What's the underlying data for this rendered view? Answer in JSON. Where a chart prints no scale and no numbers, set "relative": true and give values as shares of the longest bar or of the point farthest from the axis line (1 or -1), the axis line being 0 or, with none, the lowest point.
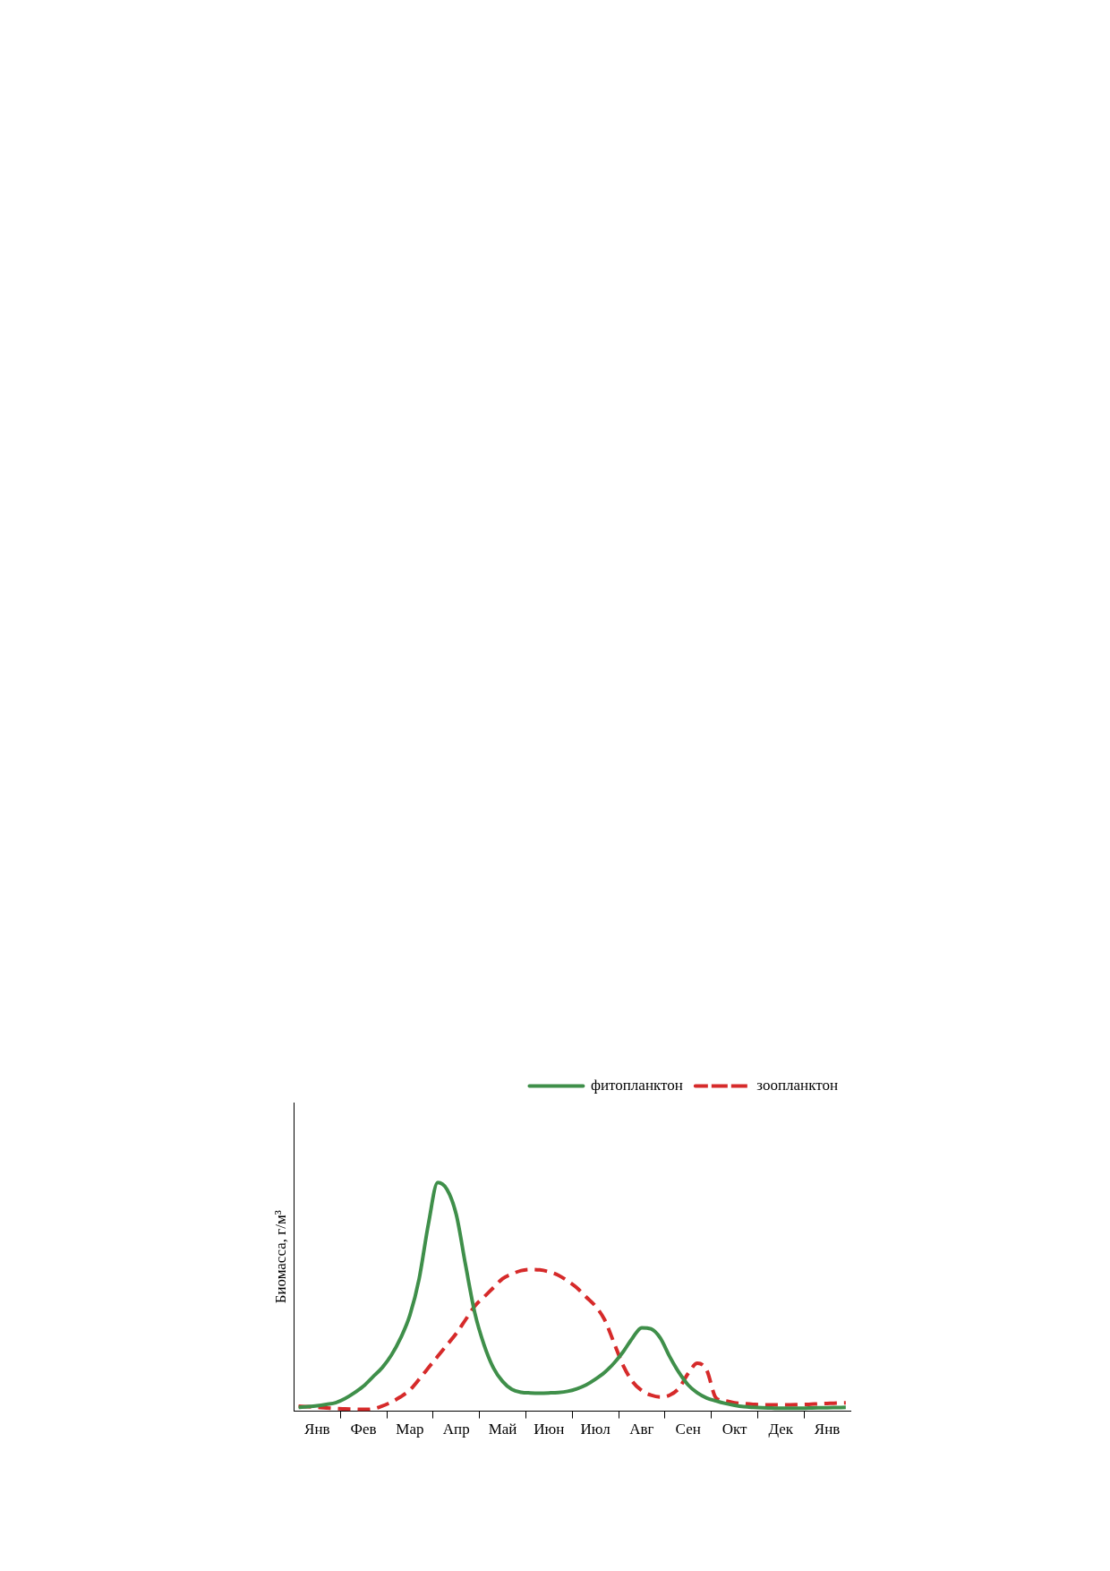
{
  "chart_data": {
    "type": "line",
    "ylabel": "Биомасса, г/м³",
    "relative": true,
    "legend": "top right",
    "marker": "none",
    "grid": false,
    "categories": [
      null,
      null,
      "Янв",
      null,
      null,
      null,
      null,
      "Фев",
      null,
      null,
      null,
      null,
      "Мар",
      null,
      null,
      null,
      null,
      "Апр",
      null,
      null,
      null,
      null,
      "Май",
      null,
      null,
      null,
      null,
      "Июн",
      null,
      null,
      null,
      null,
      "Июл",
      null,
      null,
      null,
      null,
      "Авг",
      null,
      null,
      null,
      null,
      "Сен",
      null,
      null,
      null,
      null,
      "Окт",
      null,
      null,
      null,
      null,
      "Дек",
      null,
      null,
      null,
      null,
      "Янв",
      null,
      null
    ],
    "series": [
      {
        "name": "фитопланктон",
        "color": "#3f8f4a",
        "line_style": "solid",
        "values": [
          0.017,
          0.02,
          0.024,
          0.03,
          0.037,
          0.055,
          0.08,
          0.11,
          0.15,
          0.19,
          0.245,
          0.32,
          0.42,
          0.58,
          0.82,
          1,
          0.97,
          0.86,
          0.64,
          0.43,
          0.29,
          0.19,
          0.13,
          0.095,
          0.083,
          0.08,
          0.079,
          0.08,
          0.082,
          0.087,
          0.098,
          0.115,
          0.14,
          0.17,
          0.21,
          0.26,
          0.32,
          0.365,
          0.36,
          0.32,
          0.24,
          0.17,
          0.115,
          0.08,
          0.058,
          0.045,
          0.034,
          0.026,
          0.02,
          0.017,
          0.015,
          0.014,
          0.013,
          0.013,
          0.013,
          0.014,
          0.015,
          0.015,
          0.016,
          0.017
        ]
      },
      {
        "name": "зоопланктон",
        "color": "#d62a2a",
        "line_style": "dashed",
        "values": [
          0.022,
          0.02,
          0.017,
          0.014,
          0.012,
          0.01,
          0.009,
          0.008,
          0.01,
          0.022,
          0.04,
          0.063,
          0.093,
          0.14,
          0.19,
          0.24,
          0.29,
          0.34,
          0.4,
          0.46,
          0.5,
          0.54,
          0.58,
          0.6,
          0.615,
          0.62,
          0.618,
          0.61,
          0.595,
          0.57,
          0.54,
          0.5,
          0.46,
          0.4,
          0.3,
          0.2,
          0.13,
          0.09,
          0.07,
          0.062,
          0.07,
          0.1,
          0.165,
          0.21,
          0.18,
          0.059,
          0.045,
          0.037,
          0.033,
          0.03,
          0.028,
          0.028,
          0.028,
          0.028,
          0.029,
          0.03,
          0.032,
          0.034,
          0.036,
          0.037
        ]
      }
    ]
  }
}
